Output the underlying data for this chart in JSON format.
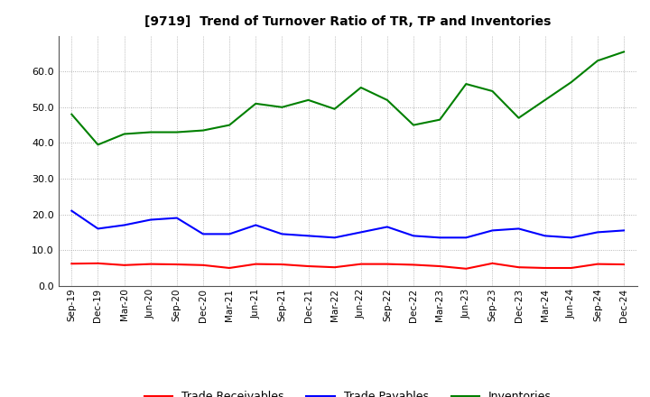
{
  "title": "[9719]  Trend of Turnover Ratio of TR, TP and Inventories",
  "x_labels": [
    "Sep-19",
    "Dec-19",
    "Mar-20",
    "Jun-20",
    "Sep-20",
    "Dec-20",
    "Mar-21",
    "Jun-21",
    "Sep-21",
    "Dec-21",
    "Mar-22",
    "Jun-22",
    "Sep-22",
    "Dec-22",
    "Mar-23",
    "Jun-23",
    "Sep-23",
    "Dec-23",
    "Mar-24",
    "Jun-24",
    "Sep-24",
    "Dec-24"
  ],
  "trade_receivables": [
    6.2,
    6.3,
    5.8,
    6.1,
    6.0,
    5.8,
    5.0,
    6.1,
    6.0,
    5.5,
    5.2,
    6.1,
    6.1,
    5.9,
    5.5,
    4.8,
    6.3,
    5.2,
    5.0,
    5.0,
    6.1,
    6.0
  ],
  "trade_payables": [
    21.0,
    16.0,
    17.0,
    18.5,
    19.0,
    14.5,
    14.5,
    17.0,
    14.5,
    14.0,
    13.5,
    15.0,
    16.5,
    14.0,
    13.5,
    13.5,
    15.5,
    16.0,
    14.0,
    13.5,
    15.0,
    15.5
  ],
  "inventories": [
    48.0,
    39.5,
    42.5,
    43.0,
    43.0,
    43.5,
    45.0,
    51.0,
    50.0,
    52.0,
    49.5,
    55.5,
    52.0,
    45.0,
    46.5,
    56.5,
    54.5,
    47.0,
    52.0,
    57.0,
    63.0,
    65.5
  ],
  "ylim": [
    0,
    70
  ],
  "yticks": [
    0.0,
    10.0,
    20.0,
    30.0,
    40.0,
    50.0,
    60.0
  ],
  "color_tr": "#FF0000",
  "color_tp": "#0000FF",
  "color_inv": "#008000",
  "legend_labels": [
    "Trade Receivables",
    "Trade Payables",
    "Inventories"
  ],
  "background_color": "#FFFFFF",
  "grid_color": "#999999"
}
